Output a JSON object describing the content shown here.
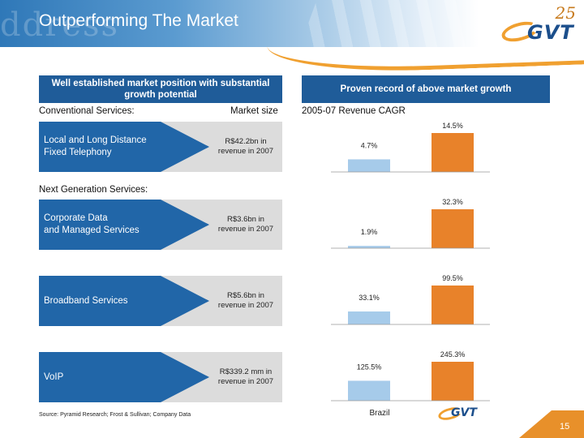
{
  "header": {
    "title": "Outperforming The Market",
    "logo_text": "GVT",
    "logo_number": "25"
  },
  "left_header": "Well established market position with substantial growth potential",
  "right_header": "Proven record of above market growth",
  "col_conventional": "Conventional Services:",
  "col_market_size": "Market size",
  "col_cagr": "2005-07 Revenue CAGR",
  "next_gen_label": "Next Generation Services:",
  "services": [
    {
      "name_line1": "Local and Long Distance",
      "name_line2": "Fixed Telephony",
      "size_line1": "R$42.2bn in",
      "size_line2": "revenue in 2007"
    },
    {
      "name_line1": "Corporate Data",
      "name_line2": "and Managed Services",
      "size_line1": "R$3.6bn in",
      "size_line2": "revenue in 2007"
    },
    {
      "name_line1": "Broadband Services",
      "name_line2": "",
      "size_line1": "R$5.6bn in",
      "size_line2": "revenue in 2007"
    },
    {
      "name_line1": "VoIP",
      "name_line2": "",
      "size_line1": "R$339.2 mm in",
      "size_line2": "revenue in 2007"
    }
  ],
  "chart_data": {
    "type": "bar",
    "categories": [
      "Brazil",
      "GVT"
    ],
    "panels": [
      {
        "service": "Local and Long Distance Fixed Telephony",
        "values": [
          4.7,
          14.5
        ],
        "labels": [
          "4.7%",
          "14.5%"
        ]
      },
      {
        "service": "Corporate Data and Managed Services",
        "values": [
          1.9,
          32.3
        ],
        "labels": [
          "1.9%",
          "32.3%"
        ]
      },
      {
        "service": "Broadband Services",
        "values": [
          33.1,
          99.5
        ],
        "labels": [
          "33.1%",
          "99.5%"
        ]
      },
      {
        "service": "VoIP",
        "values": [
          125.5,
          245.3
        ],
        "labels": [
          "125.5%",
          "245.3%"
        ]
      }
    ],
    "unit": "%",
    "colors": [
      "#a6cbea",
      "#e8822a"
    ],
    "xlabel": "Brazil"
  },
  "footer": {
    "source": "Source: Pyramid Research; Frost & Sullivan; Company Data",
    "page": "15",
    "logo_text": "GVT"
  }
}
